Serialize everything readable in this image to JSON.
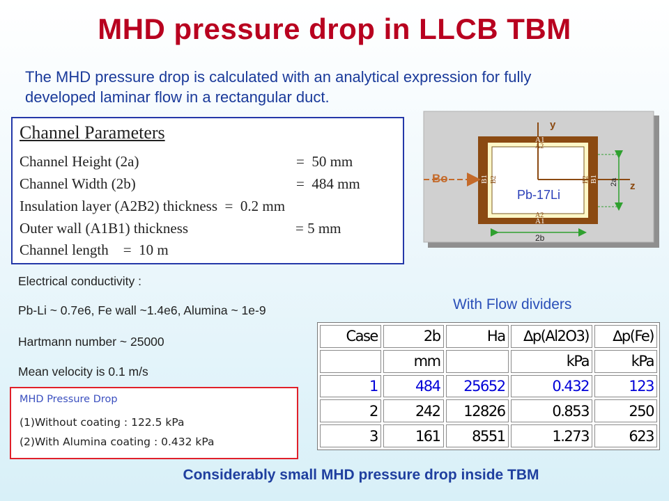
{
  "title": "MHD pressure drop in LLCB TBM",
  "intro": {
    "line1": "The MHD pressure drop is calculated with an analytical expression for fully",
    "line2": "developed laminar flow in a rectangular duct."
  },
  "channel_parameters": {
    "heading": "Channel Parameters",
    "rows": [
      {
        "label": "Channel Height (2a)",
        "value": "=  50 mm"
      },
      {
        "label": "Channel Width (2b)",
        "value": "=  484 mm"
      },
      {
        "label": "Insulation layer (A2B2) thickness  =  0.2 mm",
        "value": ""
      },
      {
        "label": "Outer wall (A1B1) thickness",
        "value": "= 5 mm"
      },
      {
        "label": "Channel length    =  10 m",
        "value": ""
      }
    ]
  },
  "conditions": [
    "Electrical conductivity :",
    "Pb-Li ~ 0.7e6, Fe wall ~1.4e6, Alumina ~ 1e-9",
    "Hartmann number ~ 25000",
    "Mean velocity is 0.1 m/s"
  ],
  "mhd_box": {
    "heading": "MHD Pressure Drop",
    "line1": "(1)Without coating : 122.5 kPa",
    "line2": "(2)With Alumina coating : 0.432 kPa"
  },
  "flow_dividers_label": "With Flow dividers",
  "table": {
    "headers": [
      "Case",
      "2b",
      "Ha",
      "∆p(Al2O3)",
      "∆p(Fe)"
    ],
    "units": [
      "",
      "mm",
      "",
      "kPa",
      "kPa"
    ],
    "rows": [
      [
        "1",
        "484",
        "25652",
        "0.432",
        "123"
      ],
      [
        "2",
        "242",
        "12826",
        "0.853",
        "250"
      ],
      [
        "3",
        "161",
        "8551",
        "1.273",
        "623"
      ]
    ]
  },
  "diagram": {
    "y_axis": "y",
    "z_axis": "z",
    "field": "Bo",
    "fluid": "Pb-17Li",
    "wall_outer_top": "A1",
    "wall_inner_top": "A2",
    "wall_outer_bottom": "A1",
    "wall_inner_bottom": "A2",
    "wall_outer_left": "B1",
    "wall_inner_left": "B2",
    "wall_outer_right": "B1",
    "wall_inner_right": "B2",
    "height_dim": "2a",
    "width_dim": "2b",
    "colors": {
      "wall": "#8b4a12",
      "insulation": "#fff8c8",
      "fluid": "#ffffff",
      "dim": "#2fa02f",
      "background": "#d0d0d0"
    }
  },
  "conclusion": "Considerably small MHD pressure drop inside TBM"
}
